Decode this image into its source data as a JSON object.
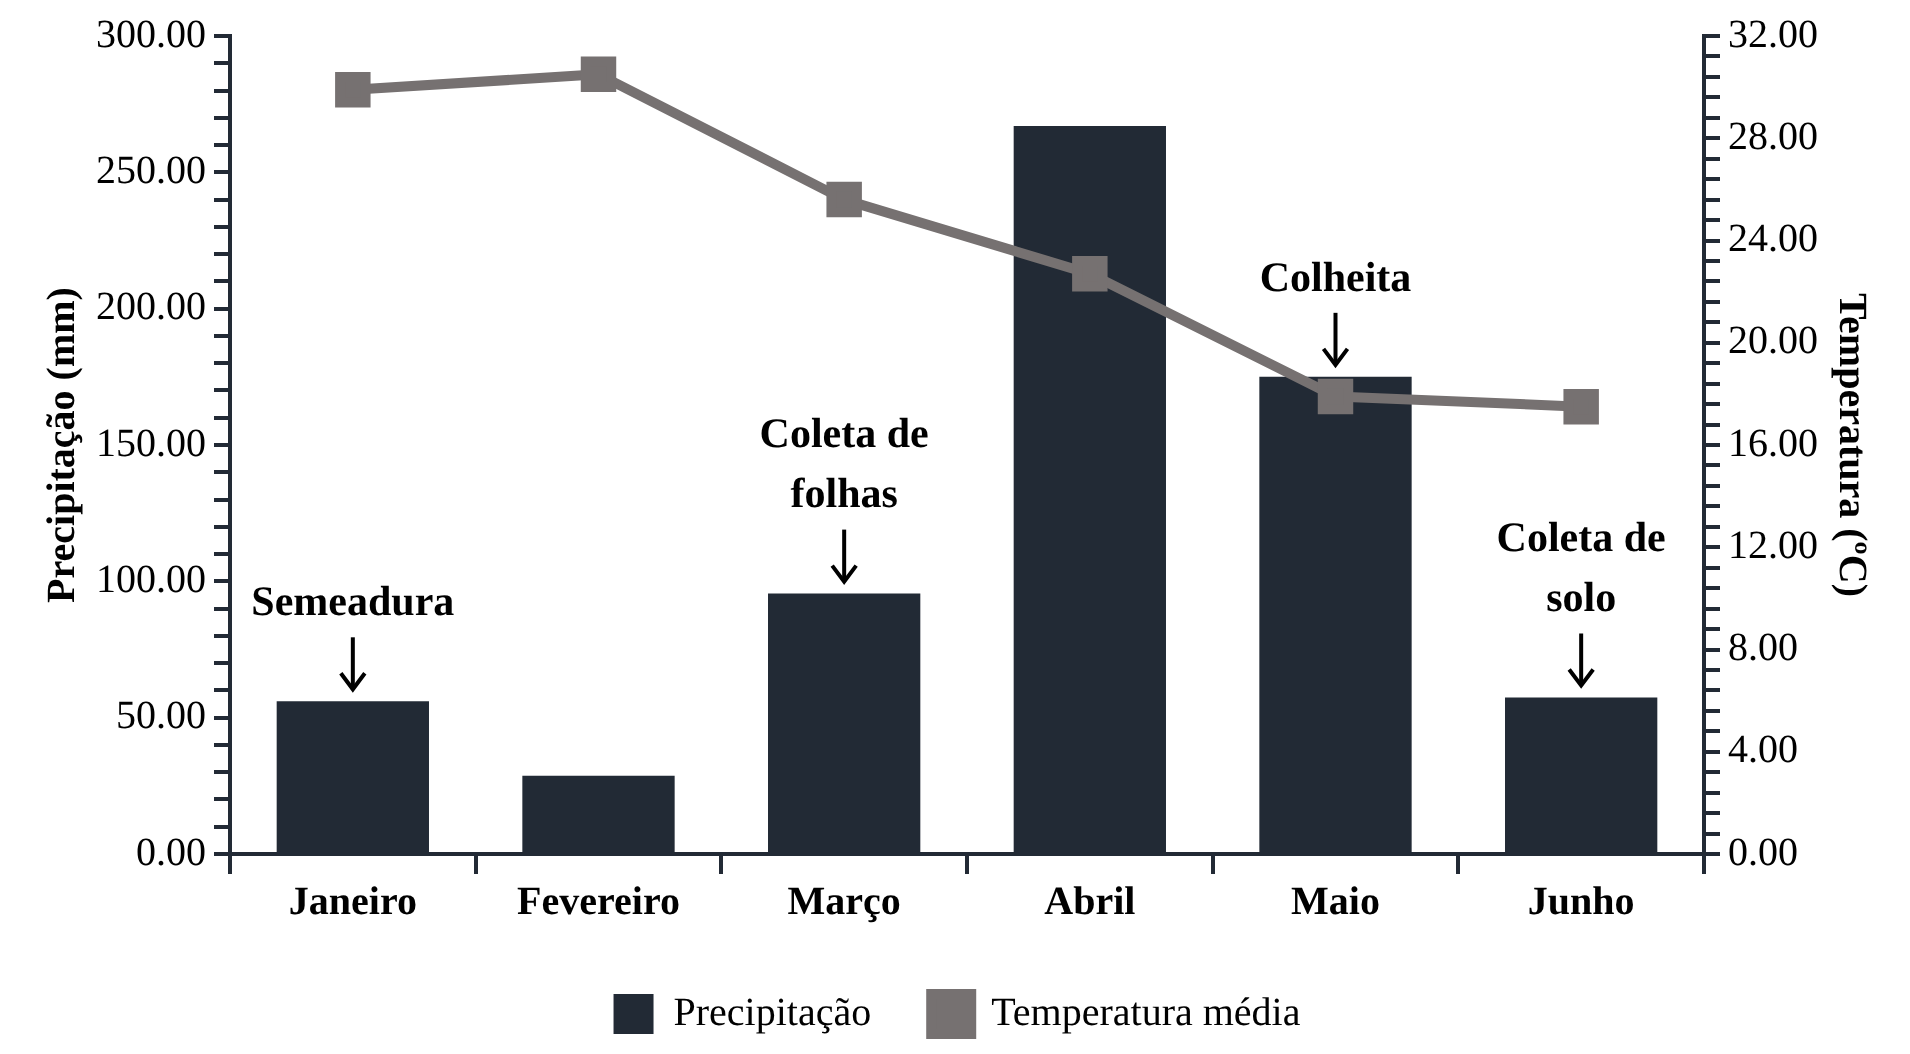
{
  "chart_data": {
    "type": "bar",
    "categories": [
      "Janeiro",
      "Fevereiro",
      "Março",
      "Abril",
      "Maio",
      "Junho"
    ],
    "series": [
      {
        "name": "Precipitação",
        "color": "#222a35",
        "values": [
          56,
          28.7,
          95.5,
          267,
          175,
          57.4
        ]
      },
      {
        "name": "Temperatura média",
        "type": "line",
        "axis": "y2",
        "color": "#767171",
        "marker": "square",
        "values": [
          29.9,
          30.5,
          25.6,
          22.7,
          17.9,
          17.5
        ]
      }
    ],
    "ylabel": "Precipitação (mm)",
    "y2label": "Temperatura (ºC)",
    "ylim": [
      0,
      300
    ],
    "yticks": [
      {
        "value": 0,
        "label": "0.00"
      },
      {
        "value": 10,
        "label": null
      },
      {
        "value": 20,
        "label": null
      },
      {
        "value": 30,
        "label": null
      },
      {
        "value": 40,
        "label": null
      },
      {
        "value": 50,
        "label": "50.00"
      },
      {
        "value": 60,
        "label": null
      },
      {
        "value": 70,
        "label": null
      },
      {
        "value": 80,
        "label": null
      },
      {
        "value": 90,
        "label": null
      },
      {
        "value": 100,
        "label": "100.00"
      },
      {
        "value": 110,
        "label": null
      },
      {
        "value": 120,
        "label": null
      },
      {
        "value": 130,
        "label": null
      },
      {
        "value": 140,
        "label": null
      },
      {
        "value": 150,
        "label": "150.00"
      },
      {
        "value": 160,
        "label": null
      },
      {
        "value": 170,
        "label": null
      },
      {
        "value": 180,
        "label": null
      },
      {
        "value": 190,
        "label": null
      },
      {
        "value": 200,
        "label": "200.00"
      },
      {
        "value": 210,
        "label": null
      },
      {
        "value": 220,
        "label": null
      },
      {
        "value": 230,
        "label": null
      },
      {
        "value": 240,
        "label": null
      },
      {
        "value": 250,
        "label": "250.00"
      },
      {
        "value": 260,
        "label": null
      },
      {
        "value": 270,
        "label": null
      },
      {
        "value": 280,
        "label": null
      },
      {
        "value": 290,
        "label": null
      },
      {
        "value": 300,
        "label": "300.00"
      }
    ],
    "y2lim": [
      0,
      32
    ],
    "y2ticks": [
      {
        "value": 0,
        "label": "0.00"
      },
      {
        "value": 0.8,
        "label": null
      },
      {
        "value": 1.6,
        "label": null
      },
      {
        "value": 2.4,
        "label": null
      },
      {
        "value": 3.2,
        "label": null
      },
      {
        "value": 4,
        "label": "4.00"
      },
      {
        "value": 4.8,
        "label": null
      },
      {
        "value": 5.6,
        "label": null
      },
      {
        "value": 6.4,
        "label": null
      },
      {
        "value": 7.2,
        "label": null
      },
      {
        "value": 8,
        "label": "8.00"
      },
      {
        "value": 8.8,
        "label": null
      },
      {
        "value": 9.6,
        "label": null
      },
      {
        "value": 10.4,
        "label": null
      },
      {
        "value": 11.2,
        "label": null
      },
      {
        "value": 12,
        "label": "12.00"
      },
      {
        "value": 12.8,
        "label": null
      },
      {
        "value": 13.6,
        "label": null
      },
      {
        "value": 14.4,
        "label": null
      },
      {
        "value": 15.2,
        "label": null
      },
      {
        "value": 16,
        "label": "16.00"
      },
      {
        "value": 16.8,
        "label": null
      },
      {
        "value": 17.6,
        "label": null
      },
      {
        "value": 18.4,
        "label": null
      },
      {
        "value": 19.2,
        "label": null
      },
      {
        "value": 20,
        "label": "20.00"
      },
      {
        "value": 20.8,
        "label": null
      },
      {
        "value": 21.6,
        "label": null
      },
      {
        "value": 22.4,
        "label": null
      },
      {
        "value": 23.2,
        "label": null
      },
      {
        "value": 24,
        "label": "24.00"
      },
      {
        "value": 24.8,
        "label": null
      },
      {
        "value": 25.6,
        "label": null
      },
      {
        "value": 26.4,
        "label": null
      },
      {
        "value": 27.2,
        "label": null
      },
      {
        "value": 28,
        "label": "28.00"
      },
      {
        "value": 28.8,
        "label": null
      },
      {
        "value": 29.6,
        "label": null
      },
      {
        "value": 30.4,
        "label": null
      },
      {
        "value": 31.2,
        "label": null
      },
      {
        "value": 32,
        "label": "32.00"
      }
    ],
    "annotations": [
      {
        "text": "Semeadura",
        "x": "Janeiro",
        "y": 56
      },
      {
        "text": "Coleta de folhas",
        "x": "Março",
        "y": 95.5
      },
      {
        "text": "Colheita",
        "x": "Maio",
        "y": 175
      },
      {
        "text": "Coleta de solo",
        "x": "Junho",
        "y": 57.4
      }
    ],
    "legend": "bottom",
    "grid": false
  }
}
